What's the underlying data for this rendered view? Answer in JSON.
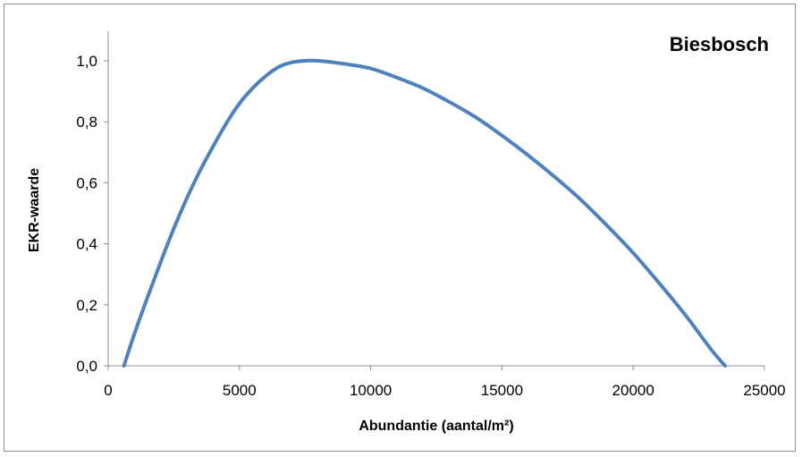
{
  "chart_data": {
    "type": "line",
    "title": "Biesbosch",
    "xlabel": "Abundantie (aantal/m²)",
    "ylabel": "EKR-waarde",
    "xlim": [
      0,
      25000
    ],
    "ylim": [
      0,
      1.1
    ],
    "x_ticks": [
      0,
      5000,
      10000,
      15000,
      20000,
      25000
    ],
    "x_tick_labels": [
      "0",
      "5000",
      "10000",
      "15000",
      "20000",
      "25000"
    ],
    "y_ticks": [
      0,
      0.2,
      0.4,
      0.6,
      0.8,
      1.0
    ],
    "y_tick_labels": [
      "0,0",
      "0,2",
      "0,4",
      "0,6",
      "0,8",
      "1,0"
    ],
    "grid": false,
    "legend": "none",
    "series": [
      {
        "color": "#4f81bd",
        "x": [
          600,
          1000,
          1500,
          2000,
          2500,
          3000,
          3500,
          4000,
          4500,
          5000,
          5500,
          6000,
          6500,
          7000,
          7500,
          8000,
          9000,
          10000,
          11000,
          12000,
          13000,
          14000,
          15000,
          16000,
          17000,
          18000,
          19000,
          20000,
          21000,
          22000,
          23000,
          23500
        ],
        "y": [
          0.0,
          0.105,
          0.225,
          0.34,
          0.45,
          0.55,
          0.64,
          0.72,
          0.795,
          0.86,
          0.91,
          0.95,
          0.98,
          0.995,
          1.0,
          1.0,
          0.99,
          0.975,
          0.945,
          0.91,
          0.865,
          0.815,
          0.755,
          0.69,
          0.62,
          0.545,
          0.46,
          0.37,
          0.27,
          0.165,
          0.05,
          0.0
        ]
      }
    ]
  }
}
